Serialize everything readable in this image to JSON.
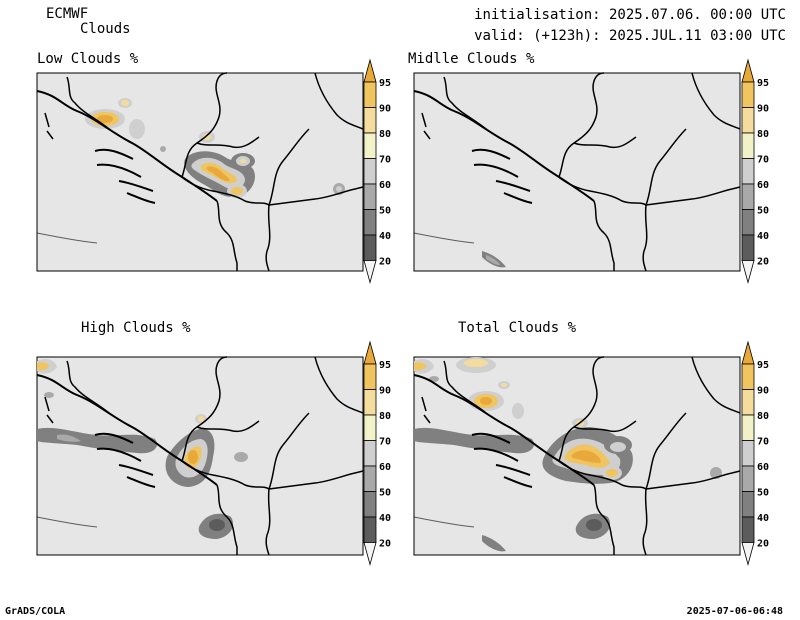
{
  "header": {
    "model": "ECMWF",
    "product": "Clouds",
    "init_label": "initialisation: 2025.07.06. 00:00 UTC",
    "valid_label": "valid: (+123h): 2025.JUL.11 03:00 UTC"
  },
  "panels": [
    {
      "id": "low",
      "title": "Low Clouds %"
    },
    {
      "id": "middle",
      "title": "Midlle Clouds %"
    },
    {
      "id": "high",
      "title": "High Clouds %"
    },
    {
      "id": "total",
      "title": "Total Clouds %"
    }
  ],
  "colorbar": {
    "labels": [
      "95",
      "90",
      "80",
      "70",
      "60",
      "50",
      "40",
      "20"
    ],
    "colors": [
      "#e8a93a",
      "#f0c45e",
      "#f4dc9c",
      "#f2f2c8",
      "#cfcfcf",
      "#a9a9a9",
      "#808080",
      "#5c5c5c",
      "#f4f4f4"
    ]
  },
  "colors": {
    "land": "#e6e6e6",
    "border": "#000000"
  },
  "footer": {
    "left": "GrADS/COLA",
    "right": "2025-07-06-06:48"
  }
}
